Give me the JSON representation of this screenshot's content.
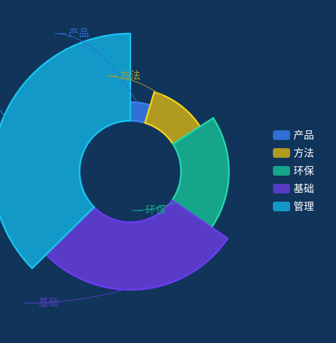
{
  "chart_data": {
    "type": "pie",
    "subtype": "nightingale-rose-ring",
    "categories": [
      "产品",
      "方法",
      "环保",
      "基础",
      "管理"
    ],
    "values": [
      5,
      12,
      20,
      30,
      40
    ],
    "colors": [
      "#2f6fd6",
      "#b09a1f",
      "#16a58a",
      "#5a3bc8",
      "#1299c8"
    ],
    "stroke_colors": [
      "#3f86f0",
      "#f2d21a",
      "#22d8a8",
      "#6b3cf2",
      "#19c4ef"
    ],
    "label_colors": [
      "#2f6fd6",
      "#b09a1f",
      "#16a58a",
      "#5a3bc8",
      "#1299c8"
    ],
    "legend": {
      "position": "right",
      "entries": [
        "产品",
        "方法",
        "环保",
        "基础",
        "管理"
      ]
    }
  }
}
